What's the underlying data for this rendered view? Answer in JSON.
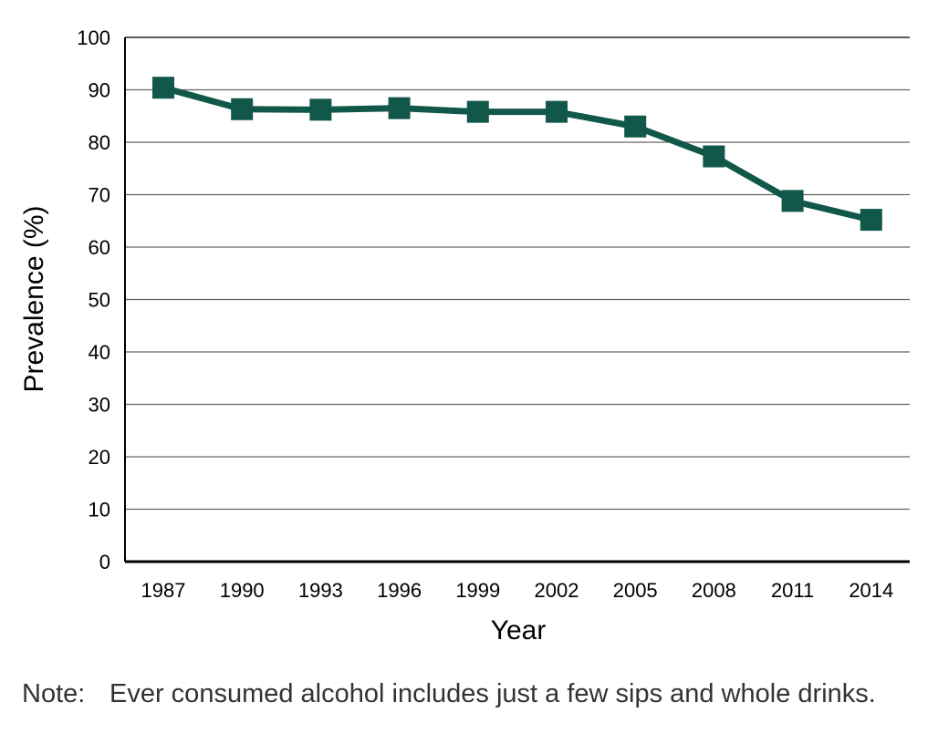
{
  "chart_data": {
    "type": "line",
    "title": "",
    "xlabel": "Year",
    "ylabel": "Prevalence (%)",
    "ylim": [
      0,
      100
    ],
    "y_ticks": [
      0,
      10,
      20,
      30,
      40,
      50,
      60,
      70,
      80,
      90,
      100
    ],
    "categories": [
      "1987",
      "1990",
      "1993",
      "1996",
      "1999",
      "2002",
      "2005",
      "2008",
      "2011",
      "2014"
    ],
    "series": [
      {
        "values": [
          90.4,
          86.3,
          86.2,
          86.5,
          85.8,
          85.8,
          83.0,
          77.3,
          68.8,
          65.2
        ],
        "color": "#11574a"
      }
    ],
    "grid": true,
    "legend": "none"
  },
  "note": {
    "label": "Note:",
    "text": "Ever consumed alcohol includes just a few sips and whole drinks."
  }
}
